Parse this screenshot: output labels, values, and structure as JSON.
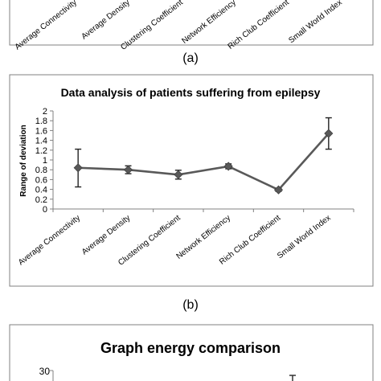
{
  "top_panel": {
    "labels": [
      "Average Connectivity",
      "Average Density",
      "Clustering Coefficient",
      "Network Efficiency",
      "Rich Club Coefficient",
      "Small World Index"
    ],
    "caption": "(a)"
  },
  "chart_data": [
    {
      "type": "line",
      "title": "Data analysis of patients suffering from epilepsy",
      "xlabel": "",
      "ylabel": "Range of deviation",
      "categories": [
        "Average Connectivity",
        "Average Density",
        "Clustering Coefficient",
        "Network Efficiency",
        "Rich Club Coefficient",
        "Small World Index"
      ],
      "series": [
        {
          "values": [
            0.84,
            0.8,
            0.7,
            0.87,
            0.39,
            1.54
          ],
          "error_low": [
            0.45,
            0.72,
            0.61,
            0.82,
            0.36,
            1.22
          ],
          "error_high": [
            1.22,
            0.88,
            0.79,
            0.92,
            0.42,
            1.86
          ]
        }
      ],
      "ylim": [
        0,
        2
      ],
      "yticks": [
        "0",
        "0.2",
        "0.4",
        "0.6",
        "0.8",
        "1",
        "1.2",
        "1.4",
        "1.6",
        "1.8",
        "2"
      ],
      "grid": false,
      "marker": "diamond",
      "color": "#595959",
      "caption": "(b)"
    },
    {
      "type": "line",
      "title": "Graph energy comparison",
      "yticks_visible": [
        "30"
      ]
    }
  ]
}
